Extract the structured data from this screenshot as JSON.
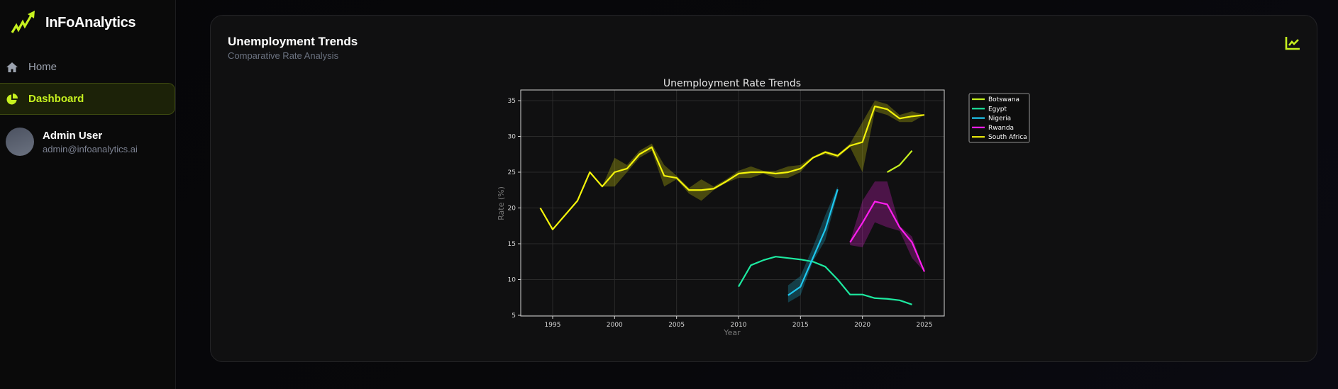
{
  "app": {
    "name": "InFoAnalytics"
  },
  "sidebar": {
    "items": [
      {
        "label": "Home",
        "icon": "home-icon",
        "active": false
      },
      {
        "label": "Dashboard",
        "icon": "pie-chart-icon",
        "active": true
      }
    ],
    "user": {
      "name": "Admin User",
      "email": "admin@infoanalytics.ai"
    }
  },
  "card": {
    "title": "Unemployment Trends",
    "subtitle": "Comparative Rate Analysis",
    "icon": "line-chart-icon"
  },
  "colors": {
    "accent": "#c6f11f",
    "background": "#0a0a0a",
    "card": "#101011"
  },
  "chart_data": {
    "type": "line",
    "title": "Unemployment Rate Trends",
    "xlabel": "Year",
    "ylabel": "Rate (%)",
    "xlim": [
      1992.5,
      2026.5
    ],
    "ylim": [
      4.8,
      36.5
    ],
    "xticks": [
      1995,
      2000,
      2005,
      2010,
      2015,
      2020,
      2025
    ],
    "yticks": [
      5,
      10,
      15,
      20,
      25,
      30,
      35
    ],
    "grid": true,
    "legend_position": "outside upper right",
    "series": [
      {
        "name": "Botswana",
        "color": "#c6f11f",
        "x": [
          2022,
          2023,
          2024
        ],
        "values": [
          25.0,
          26.0,
          28.0
        ]
      },
      {
        "name": "Egypt",
        "color": "#1de9a0",
        "x": [
          2010,
          2011,
          2012,
          2013,
          2014,
          2015,
          2016,
          2017,
          2018,
          2019,
          2020,
          2021,
          2022,
          2023,
          2024
        ],
        "values": [
          9.0,
          12.0,
          12.7,
          13.2,
          13.0,
          12.8,
          12.5,
          11.8,
          10.0,
          7.9,
          7.9,
          7.4,
          7.3,
          7.1,
          6.5
        ]
      },
      {
        "name": "Nigeria",
        "color": "#1ec8f0",
        "x": [
          2014,
          2015,
          2016,
          2017,
          2018
        ],
        "values": [
          7.8,
          9.0,
          13.0,
          17.0,
          22.6
        ],
        "band_low": [
          6.8,
          7.8,
          12.5,
          15.5,
          22.0
        ],
        "band_high": [
          9.2,
          10.5,
          14.5,
          19.0,
          23.0
        ]
      },
      {
        "name": "Rwanda",
        "color": "#ff1ef0",
        "x": [
          2019,
          2020,
          2021,
          2022,
          2023,
          2024,
          2025
        ],
        "values": [
          15.2,
          17.9,
          20.9,
          20.5,
          17.3,
          15.2,
          11.1
        ],
        "band_low": [
          14.8,
          14.5,
          18.0,
          17.3,
          16.8,
          13.0,
          11.1
        ],
        "band_high": [
          15.3,
          21.0,
          23.7,
          23.7,
          17.5,
          16.0,
          11.1
        ]
      },
      {
        "name": "South Africa",
        "color": "#f5f50a",
        "x": [
          1994,
          1995,
          1997,
          1998,
          1999,
          2000,
          2001,
          2002,
          2003,
          2004,
          2005,
          2006,
          2007,
          2008,
          2009,
          2010,
          2011,
          2012,
          2013,
          2014,
          2015,
          2016,
          2017,
          2018,
          2019,
          2020,
          2021,
          2022,
          2023,
          2024,
          2025
        ],
        "values": [
          20.0,
          17.0,
          21.0,
          25.0,
          23.0,
          25.0,
          25.5,
          27.5,
          28.5,
          24.5,
          24.2,
          22.5,
          22.5,
          22.7,
          23.7,
          24.8,
          25.0,
          25.0,
          24.8,
          25.0,
          25.5,
          27.0,
          27.8,
          27.3,
          28.7,
          29.2,
          34.2,
          33.8,
          32.5,
          32.8,
          33.0
        ],
        "band_low": [
          20.0,
          17.0,
          21.0,
          25.0,
          23.0,
          23.0,
          25.0,
          27.0,
          28.0,
          23.0,
          24.0,
          22.0,
          21.0,
          22.5,
          23.5,
          24.2,
          24.2,
          24.8,
          24.2,
          24.2,
          25.0,
          27.0,
          27.5,
          27.0,
          28.5,
          25.0,
          33.5,
          33.0,
          32.0,
          32.0,
          33.0
        ],
        "band_high": [
          20.0,
          17.0,
          21.0,
          25.0,
          23.0,
          27.0,
          26.0,
          28.0,
          29.0,
          26.0,
          24.5,
          22.8,
          24.0,
          23.0,
          24.0,
          25.2,
          25.8,
          25.2,
          25.2,
          25.8,
          26.0,
          27.2,
          28.0,
          27.5,
          29.0,
          32.0,
          35.0,
          34.5,
          33.0,
          33.5,
          33.0
        ]
      }
    ]
  }
}
